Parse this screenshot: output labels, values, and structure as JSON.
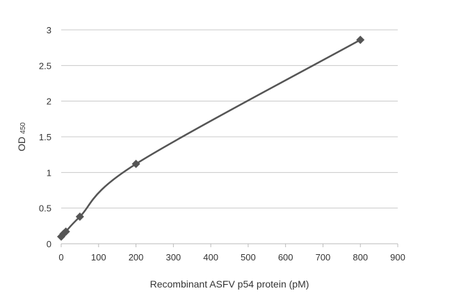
{
  "chart_data": {
    "type": "line",
    "title": "",
    "xlabel": "Recombinant ASFV p54 protein (pM)",
    "ylabel": "OD",
    "ylabel_subscript": "450",
    "xlim": [
      0,
      900
    ],
    "ylim": [
      0,
      3
    ],
    "xticks": [
      "0",
      "100",
      "200",
      "300",
      "400",
      "500",
      "600",
      "700",
      "800",
      "900"
    ],
    "yticks": [
      "0",
      "0.5",
      "1",
      "1.5",
      "2",
      "2.5",
      "3"
    ],
    "grid": "horizontal",
    "legend": "none",
    "series": [
      {
        "x": [
          0,
          6.25,
          12.5,
          50,
          200,
          800
        ],
        "y": [
          0.1,
          0.14,
          0.17,
          0.38,
          1.12,
          2.86
        ],
        "color": "#555555",
        "marker": "diamond",
        "smooth": true
      }
    ]
  }
}
